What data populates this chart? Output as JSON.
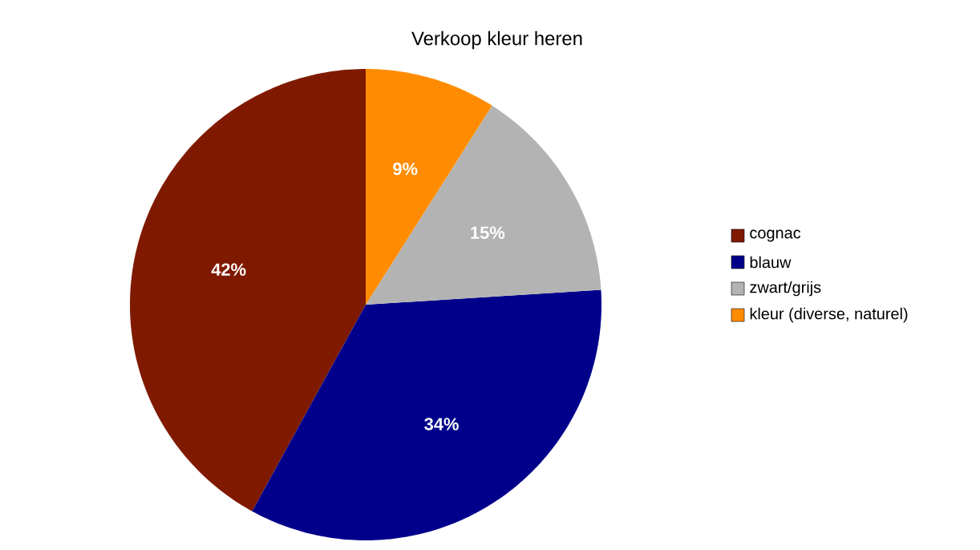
{
  "chart_data": {
    "type": "pie",
    "title": "Verkoop kleur heren",
    "categories": [
      "cognac",
      "blauw",
      "zwart/grijs",
      "kleur (diverse, naturel)"
    ],
    "values": [
      42,
      34,
      15,
      9
    ],
    "colors": [
      "#7f1a00",
      "#00008b",
      "#b3b3b3",
      "#ff8c00"
    ],
    "value_labels": [
      "42%",
      "34%",
      "15%",
      "9%"
    ],
    "legend": "right"
  }
}
